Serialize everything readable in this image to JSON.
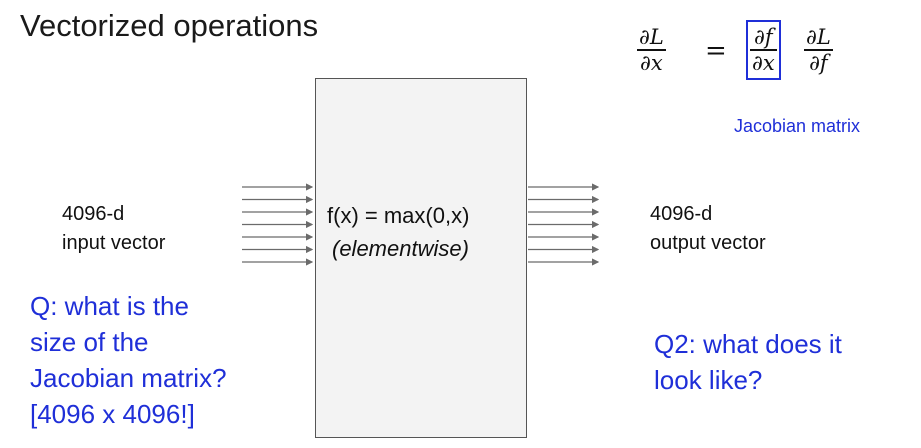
{
  "title": "Vectorized operations",
  "equation": {
    "lhs_num": "∂L",
    "lhs_den": "∂x",
    "equals": "=",
    "jac_num": "∂f",
    "jac_den": "∂x",
    "rhs_num": "∂L",
    "rhs_den": "∂f",
    "jacobian_label": "Jacobian matrix"
  },
  "function_box": {
    "line1": "f(x) = max(0,x)",
    "line2": "(elementwise)"
  },
  "input": {
    "line1": "4096-d",
    "line2": "input vector"
  },
  "output": {
    "line1": "4096-d",
    "line2": "output vector"
  },
  "question1": [
    "Q: what is the",
    "size of the",
    "Jacobian matrix?",
    "[4096 x 4096!]"
  ],
  "question2": [
    "Q2: what does it",
    "look like?"
  ],
  "colors": {
    "accent": "#1f2fd8",
    "box_fill": "#f3f3f3",
    "arrow": "#6b6b6b"
  }
}
